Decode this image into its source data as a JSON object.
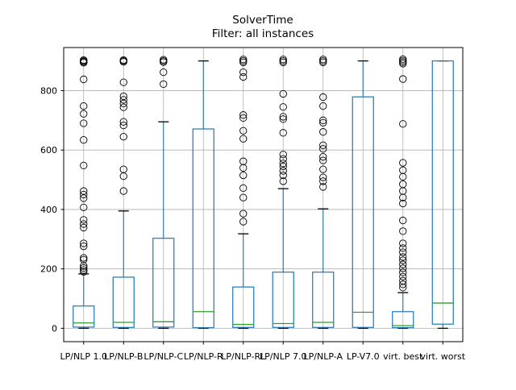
{
  "title": {
    "line1": "SolverTime",
    "line2": "Filter: all instances"
  },
  "chart_data": {
    "type": "boxplot",
    "title": "SolverTime",
    "subtitle": "Filter: all instances",
    "xlabel": "",
    "ylabel": "",
    "ylim": [
      -45,
      945
    ],
    "yticks": [
      0,
      200,
      400,
      600,
      800
    ],
    "grid": true,
    "legend": "none",
    "colors": {
      "box": "#1f77b4",
      "whisker": "#1f77b4",
      "median": "#2ca02c",
      "cap": "#000000",
      "flier": "#000000",
      "grid": "#b0b0b0",
      "spine": "#000000"
    },
    "boxes": [
      {
        "label": "LP/NLP 1.0",
        "whislo": 0,
        "q1": 4,
        "med": 18,
        "q3": 75,
        "whishi": 183,
        "fliers": [
          903,
          900,
          897,
          894,
          838,
          748,
          722,
          690,
          634,
          548,
          462,
          450,
          438,
          407,
          365,
          351,
          339,
          286,
          276,
          237,
          231,
          210,
          203,
          196,
          190
        ]
      },
      {
        "label": "LP/NLP-B",
        "whislo": 0,
        "q1": 3,
        "med": 20,
        "q3": 172,
        "whishi": 395,
        "fliers": [
          903,
          900,
          897,
          828,
          781,
          769,
          757,
          744,
          695,
          683,
          645,
          535,
          512,
          462
        ]
      },
      {
        "label": "LP/NLP-C",
        "whislo": 0,
        "q1": 4,
        "med": 22,
        "q3": 303,
        "whishi": 695,
        "fliers": [
          904,
          900,
          896,
          862,
          822
        ]
      },
      {
        "label": "LP/NLP-R",
        "whislo": 0,
        "q1": 2,
        "med": 56,
        "q3": 671,
        "whishi": 900,
        "fliers": []
      },
      {
        "label": "LP/NLP-RL",
        "whislo": 0,
        "q1": 3,
        "med": 13,
        "q3": 139,
        "whishi": 318,
        "fliers": [
          905,
          900,
          895,
          862,
          846,
          718,
          708,
          665,
          638,
          562,
          540,
          515,
          472,
          440,
          386,
          359
        ]
      },
      {
        "label": "LP/NLP 7.0",
        "whislo": 0,
        "q1": 3,
        "med": 16,
        "q3": 189,
        "whishi": 470,
        "fliers": [
          905,
          900,
          895,
          789,
          745,
          712,
          704,
          658,
          585,
          570,
          555,
          545,
          530,
          515,
          495
        ]
      },
      {
        "label": "LP/NLP-A",
        "whislo": 0,
        "q1": 3,
        "med": 20,
        "q3": 189,
        "whishi": 402,
        "fliers": [
          905,
          900,
          895,
          778,
          748,
          700,
          692,
          661,
          616,
          604,
          577,
          565,
          535,
          508,
          495,
          476
        ]
      },
      {
        "label": "LP-V7.0",
        "whislo": 0,
        "q1": 3,
        "med": 54,
        "q3": 779,
        "whishi": 900,
        "fliers": []
      },
      {
        "label": "virt. best",
        "whislo": 0,
        "q1": 2,
        "med": 9,
        "q3": 56,
        "whishi": 120,
        "fliers": [
          906,
          901,
          896,
          891,
          839,
          688,
          557,
          532,
          510,
          485,
          462,
          440,
          420,
          363,
          327,
          286,
          270,
          256,
          240,
          229,
          215,
          202,
          188,
          174,
          160,
          148,
          137
        ]
      },
      {
        "label": "virt. worst",
        "whislo": 0,
        "q1": 14,
        "med": 85,
        "q3": 900,
        "whishi": 900,
        "fliers": []
      }
    ]
  }
}
